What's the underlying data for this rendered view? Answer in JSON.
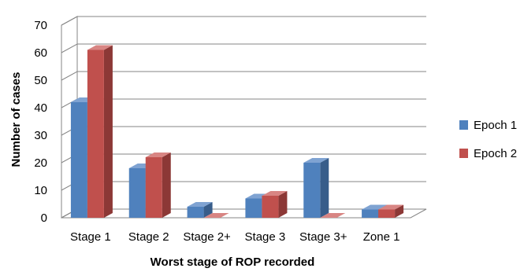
{
  "chart_data": {
    "type": "bar",
    "title": "",
    "xlabel": "Worst stage of ROP recorded",
    "ylabel": "Number of cases",
    "ylim": [
      0,
      70
    ],
    "yticks": [
      0,
      10,
      20,
      30,
      40,
      50,
      60,
      70
    ],
    "categories": [
      "Stage 1",
      "Stage 2",
      "Stage 2+",
      "Stage 3",
      "Stage 3+",
      "Zone 1"
    ],
    "series": [
      {
        "name": "Epoch 1",
        "values": [
          42,
          18,
          4,
          7,
          20,
          3
        ]
      },
      {
        "name": "Epoch 2",
        "values": [
          61,
          22,
          0,
          8,
          0,
          3
        ]
      }
    ],
    "grid": true,
    "legend": "right",
    "style": "3d-clustered-column"
  },
  "colors": {
    "epoch1_front": "#4F81BD",
    "epoch1_side": "#385D8A",
    "epoch1_top": "#7FA3D2",
    "epoch2_front": "#C0504D",
    "epoch2_side": "#8C3836",
    "epoch2_top": "#D88583",
    "grid": "#868686",
    "wall": "#ffffff"
  }
}
